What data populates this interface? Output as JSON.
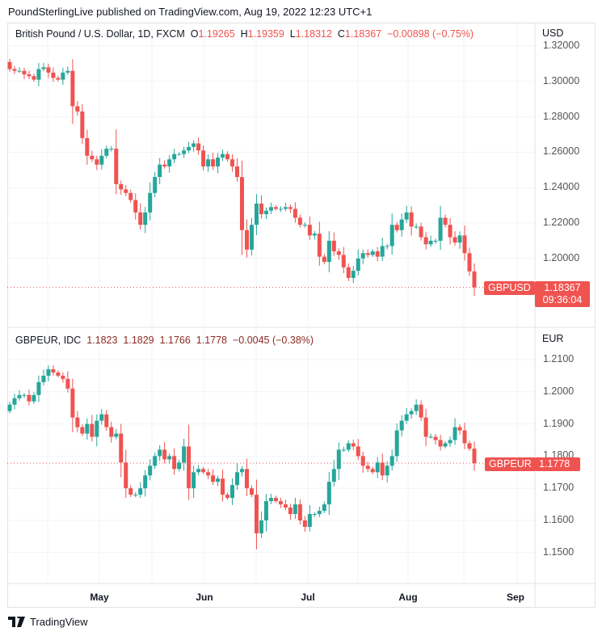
{
  "published": "PoundSterlingLive published on TradingView.com, Aug 19, 2022 12:23 UTC+1",
  "colors": {
    "up": "#26a69a",
    "down": "#ef5350",
    "grid": "#f0f3fa"
  },
  "upper": {
    "title": "British Pound / U.S. Dollar, 1D, FXCM",
    "o_label": "O",
    "o": "1.19265",
    "h_label": "H",
    "h": "1.19359",
    "l_label": "L",
    "l": "1.18312",
    "c_label": "C",
    "c": "1.18367",
    "change": "−0.00898 (−0.75%)",
    "currency": "USD",
    "ticks": [
      "1.32000",
      "1.30000",
      "1.28000",
      "1.26000",
      "1.24000",
      "1.22000",
      "1.20000"
    ],
    "symbol_tag": "GBPUSD",
    "price_tag": "1.18367",
    "countdown": "09:36:04"
  },
  "lower": {
    "title": "GBPEUR, IDC",
    "o": "1.1823",
    "h": "1.1829",
    "l": "1.1766",
    "c": "1.1778",
    "change": "−0.0045 (−0.38%)",
    "currency": "EUR",
    "ticks": [
      "1.2100",
      "1.2000",
      "1.1900",
      "1.1800",
      "1.1700",
      "1.1600",
      "1.1500"
    ],
    "symbol_tag": "GBPEUR",
    "price_tag": "1.1778"
  },
  "time_axis": [
    "May",
    "Jun",
    "Jul",
    "Aug",
    "Sep"
  ],
  "footer": {
    "brand": "TradingView"
  },
  "chart_data": [
    {
      "type": "candlestick",
      "title": "British Pound / U.S. Dollar, 1D, FXCM",
      "ylim": [
        1.178,
        1.326
      ],
      "first_open": 1.311,
      "close": [
        1.307,
        1.306,
        1.306,
        1.304,
        1.303,
        1.301,
        1.307,
        1.308,
        1.305,
        1.302,
        1.301,
        1.305,
        1.306,
        1.286,
        1.283,
        1.268,
        1.258,
        1.256,
        1.253,
        1.258,
        1.262,
        1.262,
        1.242,
        1.239,
        1.237,
        1.233,
        1.226,
        1.219,
        1.226,
        1.237,
        1.246,
        1.253,
        1.252,
        1.256,
        1.259,
        1.259,
        1.261,
        1.263,
        1.265,
        1.261,
        1.252,
        1.256,
        1.252,
        1.257,
        1.259,
        1.256,
        1.252,
        1.246,
        1.216,
        1.205,
        1.219,
        1.231,
        1.225,
        1.227,
        1.229,
        1.228,
        1.228,
        1.229,
        1.228,
        1.223,
        1.219,
        1.219,
        1.213,
        1.214,
        1.201,
        1.198,
        1.21,
        1.204,
        1.202,
        1.195,
        1.189,
        1.193,
        1.2,
        1.203,
        1.202,
        1.204,
        1.201,
        1.207,
        1.207,
        1.219,
        1.216,
        1.222,
        1.226,
        1.218,
        1.218,
        1.212,
        1.208,
        1.21,
        1.21,
        1.223,
        1.219,
        1.212,
        1.209,
        1.213,
        1.203,
        1.1927,
        1.18367
      ]
    },
    {
      "type": "candlestick",
      "title": "GBPEUR, IDC",
      "ylim": [
        1.144,
        1.214
      ],
      "first_open": 1.194,
      "close": [
        1.196,
        1.198,
        1.199,
        1.199,
        1.197,
        1.199,
        1.203,
        1.205,
        1.207,
        1.206,
        1.205,
        1.204,
        1.201,
        1.192,
        1.189,
        1.187,
        1.19,
        1.186,
        1.191,
        1.193,
        1.189,
        1.186,
        1.187,
        1.178,
        1.17,
        1.168,
        1.168,
        1.17,
        1.174,
        1.177,
        1.18,
        1.182,
        1.179,
        1.18,
        1.176,
        1.178,
        1.183,
        1.17,
        1.175,
        1.176,
        1.175,
        1.174,
        1.172,
        1.173,
        1.168,
        1.167,
        1.171,
        1.175,
        1.176,
        1.17,
        1.168,
        1.156,
        1.16,
        1.166,
        1.167,
        1.166,
        1.165,
        1.164,
        1.162,
        1.165,
        1.16,
        1.158,
        1.162,
        1.162,
        1.163,
        1.165,
        1.172,
        1.176,
        1.182,
        1.182,
        1.184,
        1.183,
        1.18,
        1.177,
        1.176,
        1.175,
        1.178,
        1.174,
        1.177,
        1.18,
        1.188,
        1.191,
        1.193,
        1.194,
        1.196,
        1.192,
        1.186,
        1.186,
        1.185,
        1.183,
        1.184,
        1.185,
        1.189,
        1.188,
        1.184,
        1.1823,
        1.1778
      ]
    }
  ]
}
